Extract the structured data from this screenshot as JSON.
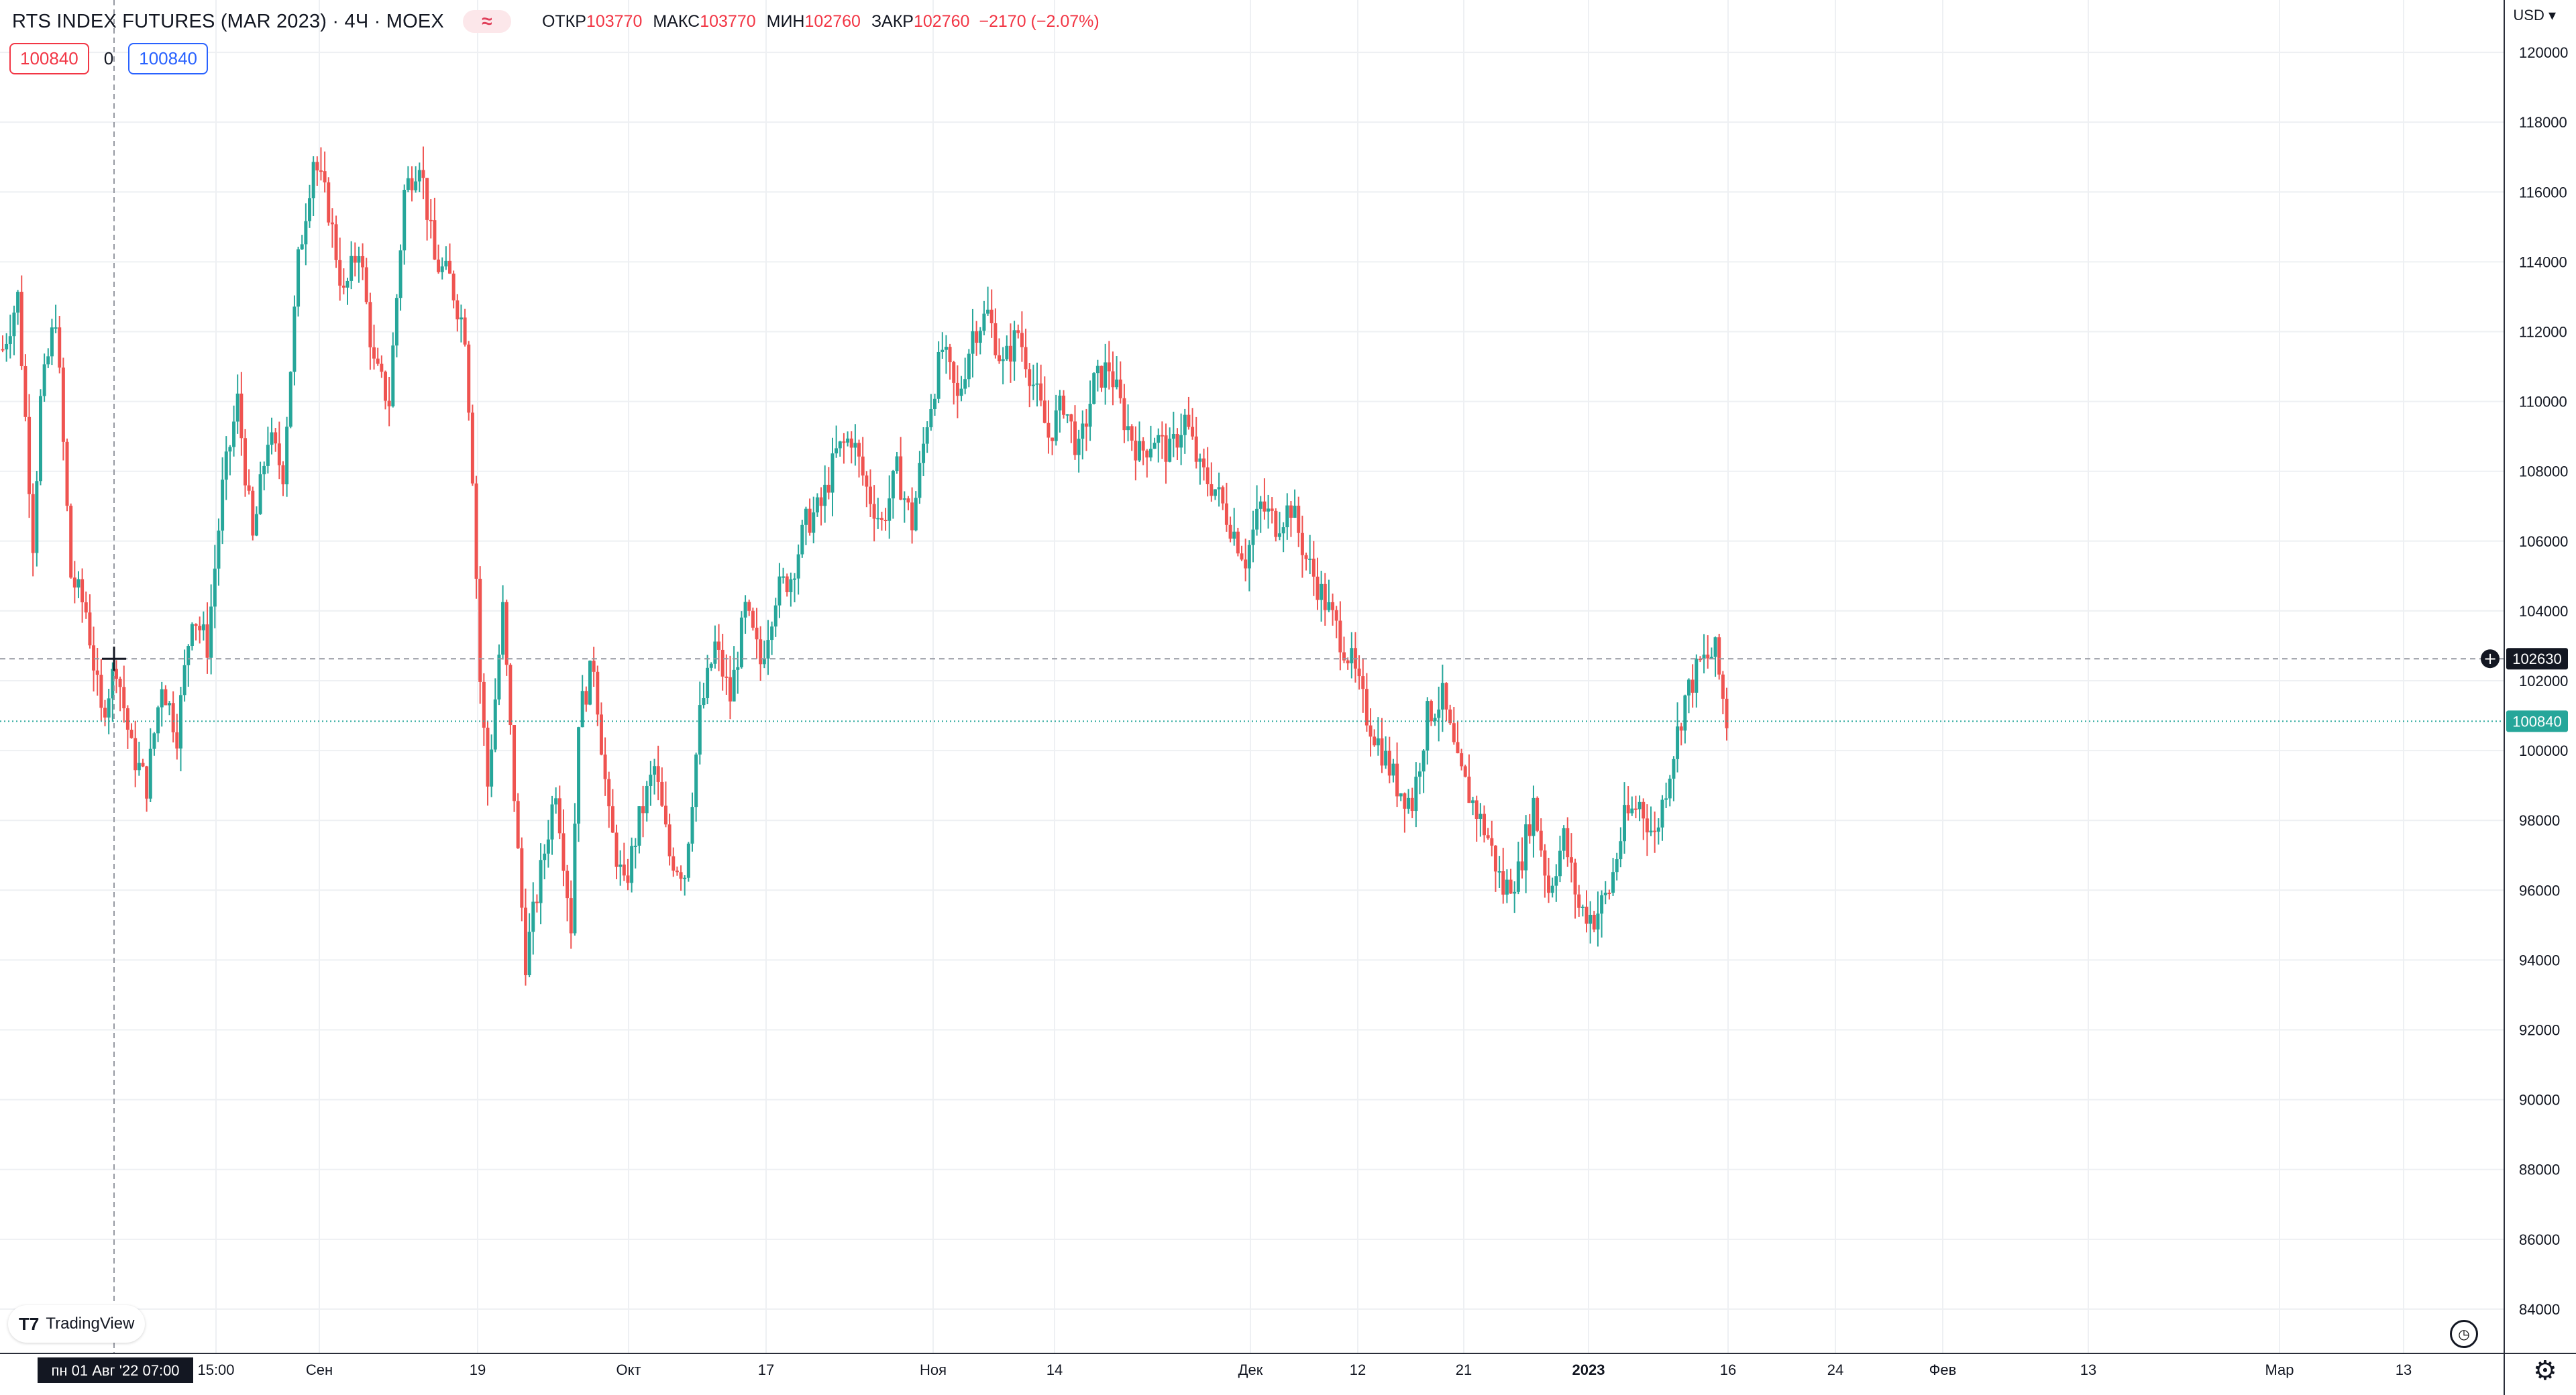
{
  "header": {
    "symbol_title": "RTS INDEX FUTURES (MAR 2023) · 4Ч · MOEX",
    "badge": "≈",
    "ohlc": [
      {
        "label": "ОТКР",
        "value": "103770"
      },
      {
        "label": "МАКС",
        "value": "103770"
      },
      {
        "label": "МИН",
        "value": "102760"
      },
      {
        "label": "ЗАКР",
        "value": "102760"
      }
    ],
    "change": "−2170 (−2.07%)"
  },
  "trade": {
    "sell": "100840",
    "spread": "0",
    "buy": "100840"
  },
  "currency": "USD",
  "logo_text": "TradingView",
  "crosshair": {
    "date_label": "пн 01 Авг '22   07:00",
    "price_label": "102630"
  },
  "colors": {
    "up": "#26a69a",
    "down": "#ef5350",
    "grid": "#eef0f3",
    "last_price": "#26a69a"
  },
  "chart_data": {
    "type": "candlestick",
    "title": "RTS INDEX FUTURES (MAR 2023) · 4Ч · MOEX",
    "y_range": [
      82500,
      121500
    ],
    "y_ticks": [
      84000,
      86000,
      88000,
      90000,
      92000,
      94000,
      96000,
      98000,
      100000,
      102000,
      104000,
      106000,
      108000,
      110000,
      112000,
      114000,
      116000,
      118000,
      120000
    ],
    "x_ticks": [
      "15:00",
      "Сен",
      "19",
      "Окт",
      "17",
      "Ноя",
      "14",
      "Дек",
      "12",
      "21",
      "2023",
      "16",
      "24",
      "Фев",
      "13",
      "Мар",
      "13"
    ],
    "last_price": 100840,
    "crosshair_price": 102630,
    "grid": true,
    "price_path": [
      [
        0,
        111500
      ],
      [
        4,
        113000
      ],
      [
        8,
        106000
      ],
      [
        10,
        110000
      ],
      [
        14,
        112500
      ],
      [
        18,
        105000
      ],
      [
        22,
        104000
      ],
      [
        26,
        101000
      ],
      [
        30,
        102500
      ],
      [
        34,
        100000
      ],
      [
        38,
        99000
      ],
      [
        42,
        102000
      ],
      [
        46,
        100500
      ],
      [
        50,
        104000
      ],
      [
        54,
        103000
      ],
      [
        58,
        107500
      ],
      [
        62,
        110000
      ],
      [
        66,
        106000
      ],
      [
        70,
        109000
      ],
      [
        74,
        108000
      ],
      [
        78,
        114000
      ],
      [
        82,
        117000
      ],
      [
        86,
        115500
      ],
      [
        90,
        113000
      ],
      [
        94,
        114500
      ],
      [
        98,
        111000
      ],
      [
        102,
        110000
      ],
      [
        106,
        116000
      ],
      [
        110,
        117000
      ],
      [
        114,
        114000
      ],
      [
        118,
        113500
      ],
      [
        122,
        112000
      ],
      [
        124,
        108000
      ],
      [
        126,
        102000
      ],
      [
        128,
        99000
      ],
      [
        132,
        104000
      ],
      [
        136,
        97000
      ],
      [
        138,
        94000
      ],
      [
        142,
        96500
      ],
      [
        146,
        99000
      ],
      [
        150,
        95000
      ],
      [
        152,
        101000
      ],
      [
        156,
        102500
      ],
      [
        160,
        98000
      ],
      [
        164,
        96000
      ],
      [
        168,
        98000
      ],
      [
        172,
        99500
      ],
      [
        176,
        97000
      ],
      [
        180,
        96500
      ],
      [
        184,
        101000
      ],
      [
        188,
        103000
      ],
      [
        192,
        101500
      ],
      [
        196,
        104000
      ],
      [
        200,
        102500
      ],
      [
        204,
        104500
      ],
      [
        208,
        105000
      ],
      [
        212,
        106500
      ],
      [
        216,
        107000
      ],
      [
        220,
        108500
      ],
      [
        224,
        109000
      ],
      [
        228,
        107500
      ],
      [
        232,
        106500
      ],
      [
        236,
        108000
      ],
      [
        240,
        106500
      ],
      [
        244,
        109500
      ],
      [
        248,
        111500
      ],
      [
        252,
        110000
      ],
      [
        256,
        112000
      ],
      [
        260,
        112500
      ],
      [
        264,
        111000
      ],
      [
        268,
        112000
      ],
      [
        272,
        110500
      ],
      [
        276,
        109000
      ],
      [
        280,
        110000
      ],
      [
        284,
        108500
      ],
      [
        288,
        110500
      ],
      [
        292,
        111000
      ],
      [
        296,
        109500
      ],
      [
        300,
        108500
      ],
      [
        304,
        109000
      ],
      [
        308,
        108500
      ],
      [
        312,
        109500
      ],
      [
        316,
        108000
      ],
      [
        320,
        107500
      ],
      [
        324,
        106500
      ],
      [
        328,
        105500
      ],
      [
        332,
        107000
      ],
      [
        336,
        106500
      ],
      [
        340,
        107000
      ],
      [
        344,
        105500
      ],
      [
        348,
        104500
      ],
      [
        352,
        103500
      ],
      [
        356,
        102500
      ],
      [
        360,
        101000
      ],
      [
        364,
        100000
      ],
      [
        368,
        99000
      ],
      [
        372,
        98500
      ],
      [
        376,
        101000
      ],
      [
        380,
        101500
      ],
      [
        384,
        99500
      ],
      [
        388,
        98500
      ],
      [
        392,
        97500
      ],
      [
        396,
        96000
      ],
      [
        400,
        96500
      ],
      [
        404,
        98500
      ],
      [
        408,
        96000
      ],
      [
        412,
        97500
      ],
      [
        416,
        95500
      ],
      [
        420,
        95200
      ],
      [
        424,
        96000
      ],
      [
        428,
        98000
      ],
      [
        432,
        98500
      ],
      [
        436,
        97500
      ],
      [
        440,
        99500
      ],
      [
        444,
        101500
      ],
      [
        448,
        102500
      ],
      [
        452,
        102800
      ],
      [
        455,
        100840
      ]
    ]
  }
}
